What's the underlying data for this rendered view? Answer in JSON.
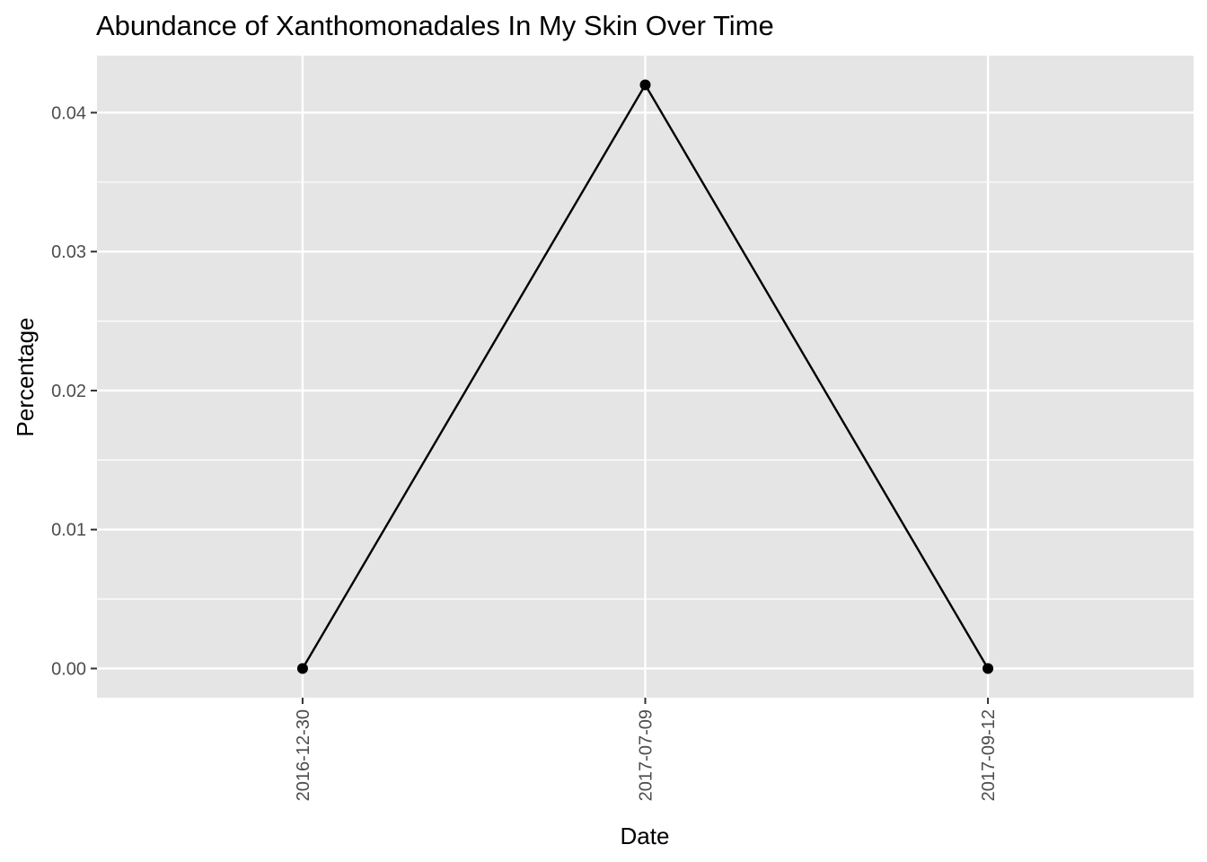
{
  "chart_data": {
    "type": "line",
    "title": "Abundance of Xanthomonadales In My Skin Over Time",
    "xlabel": "Date",
    "ylabel": "Percentage",
    "categories": [
      "2016-12-30",
      "2017-07-09",
      "2017-09-12"
    ],
    "values": [
      0.0,
      0.042,
      0.0
    ],
    "ylim": [
      -0.0021,
      0.0441
    ],
    "yticks": [
      0.0,
      0.01,
      0.02,
      0.03,
      0.04
    ],
    "ytick_labels": [
      "0.00",
      "0.01",
      "0.02",
      "0.03",
      "0.04"
    ],
    "grid": true,
    "colors": {
      "panel_background": "#e5e5e5",
      "grid": "#ffffff",
      "line": "#000000",
      "point": "#000000",
      "tick_label": "#4d4d4d"
    }
  }
}
